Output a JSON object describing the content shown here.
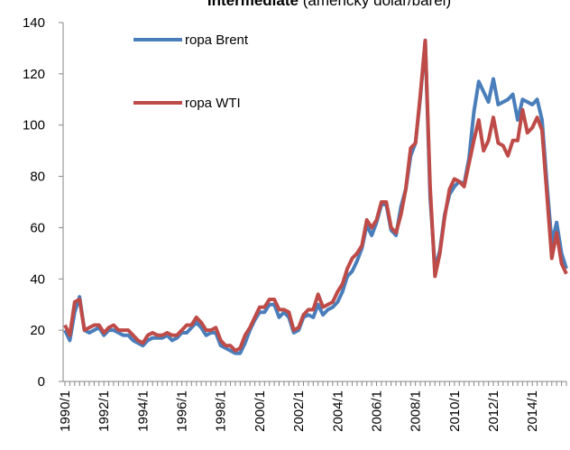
{
  "chart_data": {
    "type": "line",
    "title": {
      "bold": "Intermediate",
      "normal": "(americký dolar/barel)"
    },
    "categories": [
      "1990/1",
      null,
      null,
      null,
      null,
      null,
      null,
      null,
      "1992/1",
      null,
      null,
      null,
      null,
      null,
      null,
      null,
      "1994/1",
      null,
      null,
      null,
      null,
      null,
      null,
      null,
      "1996/1",
      null,
      null,
      null,
      null,
      null,
      null,
      null,
      "1998/1",
      null,
      null,
      null,
      null,
      null,
      null,
      null,
      "2000/1",
      null,
      null,
      null,
      null,
      null,
      null,
      null,
      "2002/1",
      null,
      null,
      null,
      null,
      null,
      null,
      null,
      "2004/1",
      null,
      null,
      null,
      null,
      null,
      null,
      null,
      "2006/1",
      null,
      null,
      null,
      null,
      null,
      null,
      null,
      "2008/1",
      null,
      null,
      null,
      null,
      null,
      null,
      null,
      "2010/1",
      null,
      null,
      null,
      null,
      null,
      null,
      null,
      "2012/1",
      null,
      null,
      null,
      null,
      null,
      null,
      null,
      "2014/1",
      null,
      null,
      null,
      null,
      null,
      null,
      null
    ],
    "series": [
      {
        "name": "ropa Brent",
        "color": "#4a7ebb",
        "values": [
          20,
          16,
          27,
          33,
          20,
          19,
          20,
          21,
          18,
          20,
          20,
          19,
          18,
          18,
          16,
          15,
          14,
          16,
          17,
          17,
          17,
          18,
          16,
          17,
          19,
          19,
          21,
          23,
          21,
          18,
          19,
          19,
          14,
          13,
          12,
          11,
          11,
          15,
          20,
          24,
          27,
          27,
          30,
          30,
          25,
          27,
          25,
          19,
          20,
          25,
          26,
          25,
          30,
          26,
          28,
          29,
          31,
          35,
          41,
          43,
          47,
          52,
          61,
          57,
          62,
          69,
          69,
          59,
          57,
          68,
          75,
          88,
          93,
          111,
          133,
          72,
          44,
          51,
          65,
          73,
          76,
          78,
          77,
          87,
          105,
          117,
          113,
          109,
          118,
          108,
          109,
          110,
          112,
          102,
          110,
          109,
          108,
          110,
          102,
          77,
          54,
          62,
          50,
          44
        ]
      },
      {
        "name": "ropa WTI",
        "color": "#be4b48",
        "values": [
          22,
          18,
          31,
          32,
          20,
          21,
          22,
          22,
          19,
          21,
          22,
          20,
          20,
          20,
          18,
          16,
          15,
          18,
          19,
          18,
          18,
          19,
          18,
          18,
          20,
          22,
          22,
          25,
          23,
          20,
          20,
          21,
          16,
          14,
          14,
          12,
          13,
          18,
          21,
          25,
          29,
          29,
          32,
          32,
          28,
          28,
          27,
          20,
          21,
          26,
          28,
          28,
          34,
          29,
          30,
          31,
          35,
          38,
          44,
          48,
          50,
          53,
          63,
          60,
          63,
          70,
          70,
          60,
          58,
          65,
          75,
          91,
          93,
          112,
          133,
          76,
          41,
          50,
          64,
          75,
          79,
          78,
          76,
          85,
          94,
          102,
          90,
          94,
          103,
          93,
          92,
          88,
          94,
          94,
          106,
          97,
          99,
          103,
          98,
          73,
          48,
          58,
          46,
          42
        ]
      }
    ],
    "ylim": [
      0,
      140
    ],
    "yticks": [
      0,
      20,
      40,
      60,
      80,
      100,
      120,
      140
    ],
    "grid": false,
    "legend": "top-left"
  }
}
